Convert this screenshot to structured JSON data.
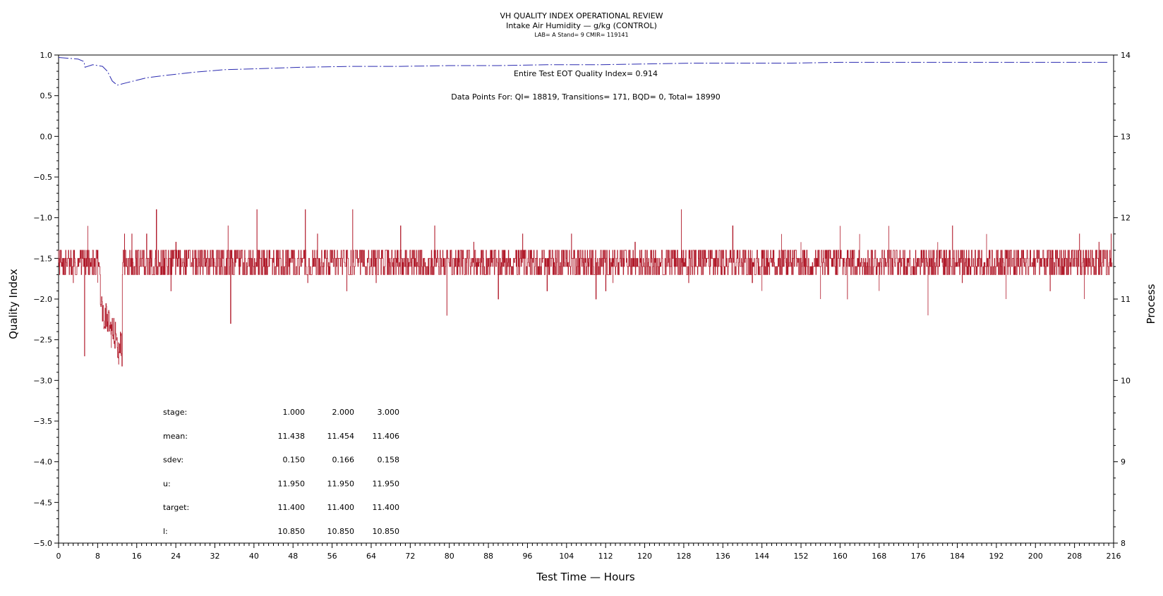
{
  "chart_data": {
    "type": "line",
    "title": "VH QUALITY INDEX OPERATIONAL REVIEW",
    "subtitle": "Intake Air Humidity — g/kg (CONTROL)",
    "subtitle2": "LAB= A Stand= 9 CMIR= 119141",
    "xlabel": "Test Time — Hours",
    "ylabel_left": "Quality Index",
    "ylabel_right": "Process",
    "xlim": [
      0,
      216
    ],
    "ylim_left": [
      -5.0,
      1.0
    ],
    "ylim_right": [
      8,
      14
    ],
    "xticks": [
      0,
      8,
      16,
      24,
      32,
      40,
      48,
      56,
      64,
      72,
      80,
      88,
      96,
      104,
      112,
      120,
      128,
      136,
      144,
      152,
      160,
      168,
      176,
      184,
      192,
      200,
      208,
      216
    ],
    "yticks_left": [
      "1.0",
      "0.5",
      "0.0",
      "−0.5",
      "−1.0",
      "−1.5",
      "−2.0",
      "−2.5",
      "−3.0",
      "−3.5",
      "−4.0",
      "−4.5",
      "−5.0"
    ],
    "yticks_left_values": [
      1.0,
      0.5,
      0.0,
      -0.5,
      -1.0,
      -1.5,
      -2.0,
      -2.5,
      -3.0,
      -3.5,
      -4.0,
      -4.5,
      -5.0
    ],
    "yticks_right": [
      14,
      13,
      12,
      11,
      10,
      9,
      8
    ],
    "grid": false,
    "annotations": {
      "eot": "Entire Test EOT Quality Index=   0.914",
      "points": "Data Points For: QI= 18819, Transitions=    171, BQD=     0, Total= 18990"
    },
    "stats_table": {
      "rows": [
        {
          "label": "stage:",
          "values": [
            "1.000",
            "2.000",
            "3.000"
          ]
        },
        {
          "label": "mean:",
          "values": [
            "11.438",
            "11.454",
            "11.406"
          ]
        },
        {
          "label": "sdev:",
          "values": [
            "0.150",
            "0.166",
            "0.158"
          ]
        },
        {
          "label": "u:",
          "values": [
            "11.950",
            "11.950",
            "11.950"
          ]
        },
        {
          "label": "target:",
          "values": [
            "11.400",
            "11.400",
            "11.400"
          ]
        },
        {
          "label": "l:",
          "values": [
            "10.850",
            "10.850",
            "10.850"
          ]
        }
      ]
    },
    "series": [
      {
        "axis": "left",
        "color": "#2b2bb0",
        "style": "dashed",
        "x": [
          0,
          2,
          4,
          5.2,
          5.4,
          7,
          9,
          10,
          11,
          12,
          14,
          18,
          22,
          28,
          34,
          40,
          50,
          60,
          70,
          80,
          90,
          100,
          110,
          120,
          130,
          140,
          150,
          160,
          170,
          180,
          190,
          200,
          210,
          215
        ],
        "y": [
          0.97,
          0.96,
          0.95,
          0.92,
          0.85,
          0.88,
          0.86,
          0.8,
          0.68,
          0.63,
          0.66,
          0.72,
          0.75,
          0.79,
          0.82,
          0.83,
          0.85,
          0.86,
          0.86,
          0.87,
          0.87,
          0.88,
          0.88,
          0.89,
          0.9,
          0.9,
          0.9,
          0.91,
          0.91,
          0.91,
          0.91,
          0.91,
          0.91,
          0.91
        ]
      },
      {
        "axis": "right",
        "color": "#b01a2a",
        "style": "solid",
        "baseline": 11.45,
        "band": [
          11.3,
          11.6
        ],
        "x": [
          0.2,
          1.0,
          2.0,
          3.0,
          4.0,
          5.3,
          6.0,
          8.0,
          9.2,
          10.0,
          10.8,
          11.5,
          12.3,
          12.8,
          13.5,
          14.0,
          15.0,
          18.0,
          20.0,
          23.0,
          24.0,
          30.0,
          34.7,
          35.2,
          37.0,
          40.6,
          44.0,
          50.5,
          51.0,
          53.0,
          59.0,
          60.2,
          65.0,
          70.0,
          74.0,
          77.0,
          79.5,
          82.0,
          85.0,
          90.0,
          95.0,
          100.0,
          105.0,
          110.0,
          112.0,
          113.5,
          118.0,
          120.0,
          125.0,
          127.5,
          129.0,
          132.0,
          138.0,
          142.0,
          144.0,
          148.0,
          152.0,
          156.0,
          160.0,
          161.5,
          164.0,
          168.0,
          170.0,
          175.0,
          178.0,
          180.0,
          183.0,
          185.0,
          190.0,
          194.0,
          199.0,
          203.0,
          209.0,
          210.0,
          213.0,
          215.5
        ],
        "y": [
          11.3,
          11.5,
          11.6,
          11.2,
          11.4,
          10.3,
          11.9,
          11.2,
          10.8,
          10.6,
          10.4,
          10.4,
          10.2,
          10.3,
          11.8,
          11.4,
          11.8,
          11.8,
          12.1,
          11.1,
          11.7,
          11.6,
          11.9,
          10.7,
          11.6,
          12.1,
          11.6,
          12.1,
          11.2,
          11.8,
          11.1,
          12.1,
          11.2,
          11.9,
          11.6,
          11.9,
          10.8,
          11.5,
          11.7,
          11.0,
          11.8,
          11.1,
          11.8,
          11.0,
          11.1,
          11.2,
          11.7,
          11.3,
          11.6,
          12.1,
          11.2,
          11.6,
          11.9,
          11.2,
          11.1,
          11.8,
          11.7,
          11.0,
          11.9,
          11.0,
          11.8,
          11.1,
          11.9,
          11.3,
          10.8,
          11.7,
          11.9,
          11.2,
          11.8,
          11.0,
          11.6,
          11.1,
          11.8,
          11.0,
          11.7,
          11.8
        ]
      }
    ]
  }
}
